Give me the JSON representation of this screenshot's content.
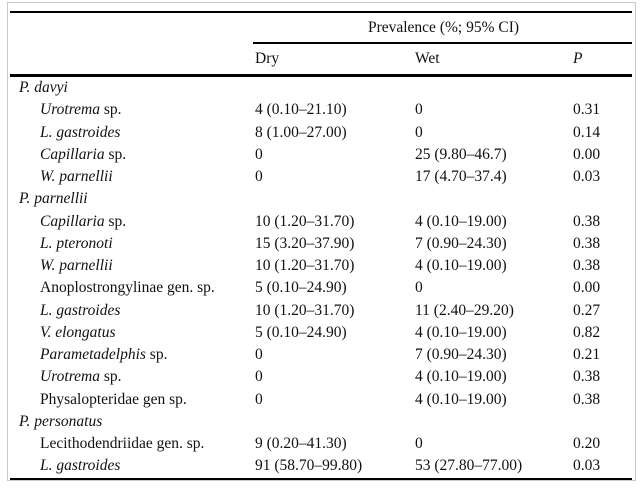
{
  "table": {
    "span_header": "Prevalence (%; 95% CI)",
    "col_headers": {
      "dry": "Dry",
      "wet": "Wet",
      "p": "P"
    },
    "rows": [
      {
        "type": "group",
        "name_italic": "P. davyi",
        "name_roman": "",
        "dry": "",
        "wet": "",
        "p": ""
      },
      {
        "type": "species",
        "name_italic": "Urotrema",
        "name_roman": " sp.",
        "dry": "4 (0.10–21.10)",
        "wet": "0",
        "p": "0.31"
      },
      {
        "type": "species",
        "name_italic": "L. gastroides",
        "name_roman": "",
        "dry": "8 (1.00–27.00)",
        "wet": "0",
        "p": "0.14"
      },
      {
        "type": "species",
        "name_italic": "Capillaria",
        "name_roman": " sp.",
        "dry": "0",
        "wet": "25 (9.80–46.7)",
        "p": "0.00"
      },
      {
        "type": "species",
        "name_italic": "W. parnellii",
        "name_roman": "",
        "dry": "0",
        "wet": "17 (4.70–37.4)",
        "p": "0.03"
      },
      {
        "type": "group",
        "name_italic": "P. parnellii",
        "name_roman": "",
        "dry": "",
        "wet": "",
        "p": ""
      },
      {
        "type": "species",
        "name_italic": "Capillaria",
        "name_roman": " sp.",
        "dry": "10 (1.20–31.70)",
        "wet": "4 (0.10–19.00)",
        "p": "0.38"
      },
      {
        "type": "species",
        "name_italic": "L. pteronoti",
        "name_roman": "",
        "dry": "15 (3.20–37.90)",
        "wet": "7 (0.90–24.30)",
        "p": "0.38"
      },
      {
        "type": "species",
        "name_italic": "W. parnellii",
        "name_roman": "",
        "dry": "10 (1.20–31.70)",
        "wet": "4 (0.10–19.00)",
        "p": "0.38"
      },
      {
        "type": "species",
        "name_italic": "",
        "name_roman": "Anoplostrongylinae gen. sp.",
        "dry": "5 (0.10–24.90)",
        "wet": "0",
        "p": "0.00"
      },
      {
        "type": "species",
        "name_italic": "L. gastroides",
        "name_roman": "",
        "dry": "10 (1.20–31.70)",
        "wet": "11 (2.40–29.20)",
        "p": "0.27"
      },
      {
        "type": "species",
        "name_italic": "V. elongatus",
        "name_roman": "",
        "dry": "5 (0.10–24.90)",
        "wet": "4 (0.10–19.00)",
        "p": "0.82"
      },
      {
        "type": "species",
        "name_italic": "Parametadelphis",
        "name_roman": " sp.",
        "dry": "0",
        "wet": "7 (0.90–24.30)",
        "p": "0.21"
      },
      {
        "type": "species",
        "name_italic": "Urotrema",
        "name_roman": " sp.",
        "dry": "0",
        "wet": "4 (0.10–19.00)",
        "p": "0.38"
      },
      {
        "type": "species",
        "name_italic": "",
        "name_roman": "Physalopteridae gen sp.",
        "dry": "0",
        "wet": "4 (0.10–19.00)",
        "p": "0.38"
      },
      {
        "type": "group",
        "name_italic": "P. personatus",
        "name_roman": "",
        "dry": "",
        "wet": "",
        "p": ""
      },
      {
        "type": "species",
        "name_italic": "",
        "name_roman": "Lecithodendriidae gen. sp.",
        "dry": "9 (0.20–41.30)",
        "wet": "0",
        "p": "0.20"
      },
      {
        "type": "species",
        "name_italic": "L. gastroides",
        "name_roman": "",
        "dry": "91 (58.70–99.80)",
        "wet": "53 (27.80–77.00)",
        "p": "0.03"
      }
    ]
  },
  "colors": {
    "rule": "#000000",
    "text": "#111111",
    "frame": "#c9c9c9",
    "background": "#ffffff"
  }
}
